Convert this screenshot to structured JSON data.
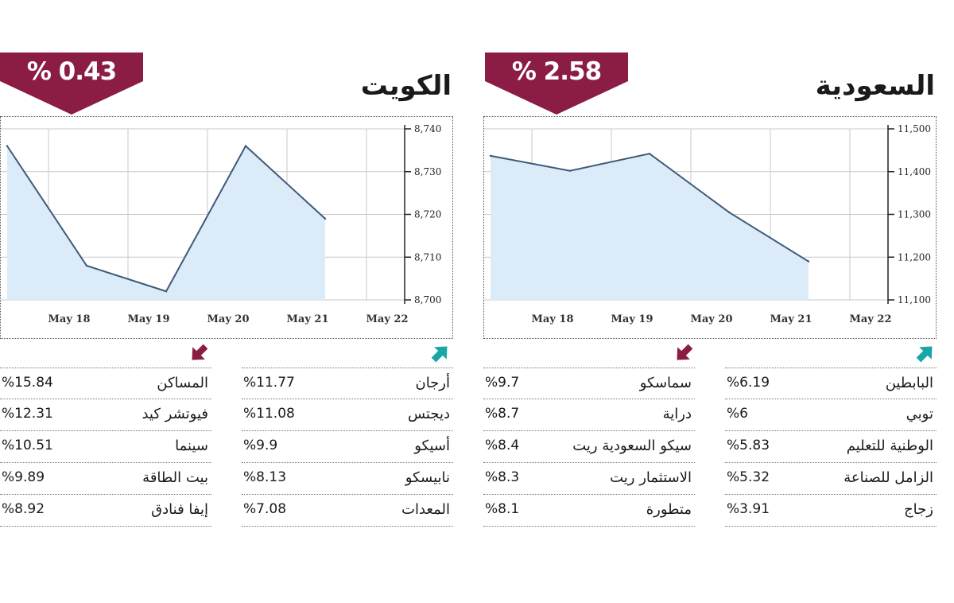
{
  "colors": {
    "badge": "#8a1c45",
    "line": "#3e5a78",
    "fill": "#dcebf8",
    "up": "#18a6a6",
    "down": "#8a1c45",
    "grid": "#c9c9c9"
  },
  "panels": [
    {
      "id": "kuwait",
      "title": "الكويت",
      "badge": "% 0.43",
      "badge_direction": "down",
      "chart_data": {
        "type": "area",
        "x": [
          "May 18",
          "May 19",
          "May 20",
          "May 21",
          "May 22"
        ],
        "series": [
          {
            "values": [
              8736,
              8708,
              8702,
              8736,
              8719
            ]
          }
        ],
        "ylim": [
          8700,
          8740
        ],
        "yticks": [
          8700,
          8710,
          8720,
          8730,
          8740
        ],
        "ytick_labels": [
          "8,700",
          "8,710",
          "8,720",
          "8,730",
          "8,740"
        ],
        "grid": true
      },
      "gainers": [
        {
          "name": "أرجان",
          "pct": "%11.77"
        },
        {
          "name": "ديجتس",
          "pct": "%11.08"
        },
        {
          "name": "أسيكو",
          "pct": "%9.9"
        },
        {
          "name": "نابيسكو",
          "pct": "%8.13"
        },
        {
          "name": "المعدات",
          "pct": "%7.08"
        }
      ],
      "losers": [
        {
          "name": "المساكن",
          "pct": "%15.84"
        },
        {
          "name": "فيوتشر كيد",
          "pct": "%12.31"
        },
        {
          "name": "سينما",
          "pct": "%10.51"
        },
        {
          "name": "بيت الطاقة",
          "pct": "%9.89"
        },
        {
          "name": "إيفا فنادق",
          "pct": "%8.92"
        }
      ]
    },
    {
      "id": "saudi",
      "title": "السعودية",
      "badge": "% 2.58",
      "badge_direction": "down",
      "chart_data": {
        "type": "area",
        "x": [
          "May 18",
          "May 19",
          "May 20",
          "May 21",
          "May 22"
        ],
        "series": [
          {
            "values": [
              11437,
              11402,
              11442,
              11305,
              11190
            ]
          }
        ],
        "ylim": [
          11100,
          11500
        ],
        "yticks": [
          11100,
          11200,
          11300,
          11400,
          11500
        ],
        "ytick_labels": [
          "11,100",
          "11,200",
          "11,300",
          "11,400",
          "11,500"
        ],
        "grid": true
      },
      "gainers": [
        {
          "name": "البابطين",
          "pct": "%6.19"
        },
        {
          "name": "توبي",
          "pct": "%6"
        },
        {
          "name": "الوطنية للتعليم",
          "pct": "%5.83"
        },
        {
          "name": "الزامل للصناعة",
          "pct": "%5.32"
        },
        {
          "name": "زجاج",
          "pct": "%3.91"
        }
      ],
      "losers": [
        {
          "name": "سماسكو",
          "pct": "%9.7"
        },
        {
          "name": "دراية",
          "pct": "%8.7"
        },
        {
          "name": "سيكو السعودية ريت",
          "pct": "%8.4"
        },
        {
          "name": "الاستثمار ريت",
          "pct": "%8.3"
        },
        {
          "name": "متطورة",
          "pct": "%8.1"
        }
      ]
    }
  ]
}
